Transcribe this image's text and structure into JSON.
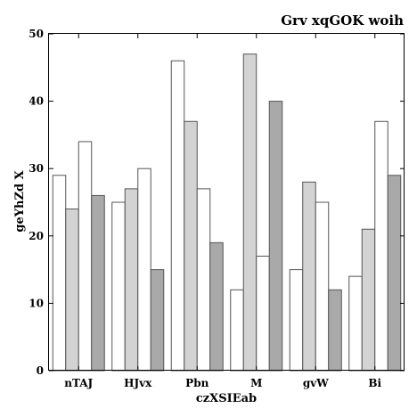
{
  "chart_data": {
    "type": "bar",
    "title": "Grv xqGOK woih",
    "xlabel": "czXSIEab",
    "ylabel": "geYhZd X",
    "ylim": [
      0,
      50
    ],
    "yticks": [
      0,
      10,
      20,
      30,
      40,
      50
    ],
    "categories": [
      "nTAJ",
      "HJvx",
      "Pbn",
      "M",
      "gvW",
      "Bi"
    ],
    "grid": false,
    "legend": "none",
    "series": [
      {
        "values": [
          29,
          25,
          46,
          12,
          15,
          14
        ],
        "color": "#ffffff"
      },
      {
        "values": [
          24,
          27,
          37,
          47,
          28,
          21
        ],
        "color": "#d3d3d3"
      },
      {
        "values": [
          34,
          30,
          27,
          17,
          25,
          37
        ],
        "color": "#ffffff"
      },
      {
        "values": [
          26,
          15,
          19,
          40,
          12,
          29
        ],
        "color": "#a9a9a9"
      }
    ]
  }
}
